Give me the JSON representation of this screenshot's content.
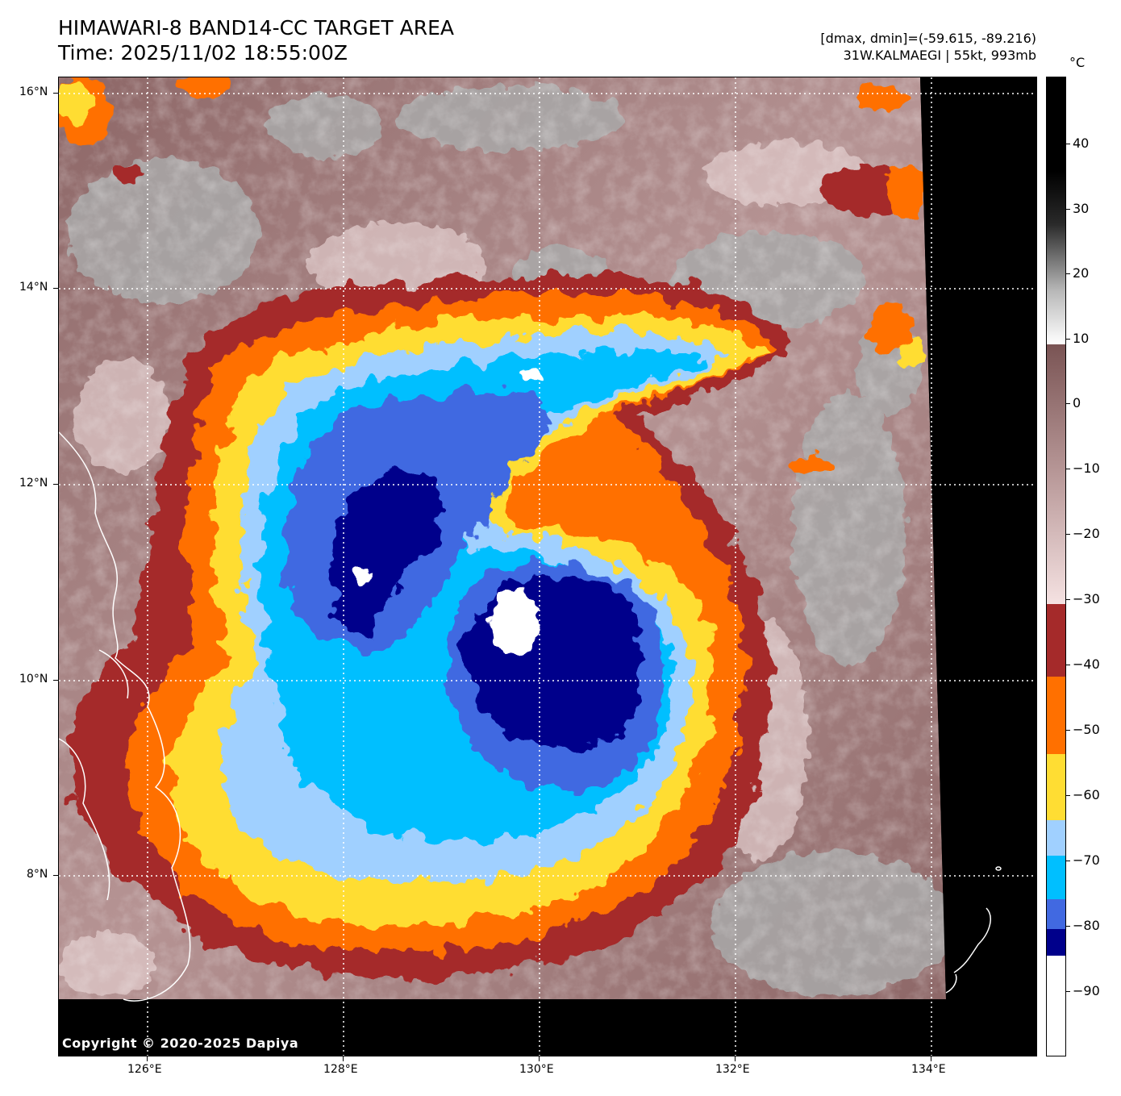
{
  "header": {
    "title_line1": "HIMAWARI-8 BAND14-CC TARGET AREA",
    "title_line2": "Time: 2025/11/02 18:55:00Z",
    "range_text": "[dmax, dmin]=(-59.615, -89.216)",
    "storm_text": "31W.KALMAEGI | 55kt, 993mb"
  },
  "colorbar": {
    "unit": "°C",
    "tick_labels": [
      "40",
      "30",
      "20",
      "10",
      "0",
      "−10",
      "−20",
      "−30",
      "−40",
      "−50",
      "−60",
      "−70",
      "−80",
      "−90"
    ]
  },
  "axes": {
    "lat_labels": [
      "16°N",
      "14°N",
      "12°N",
      "10°N",
      "8°N"
    ],
    "lon_labels": [
      "126°E",
      "128°E",
      "130°E",
      "132°E",
      "134°E"
    ]
  },
  "footer": {
    "copyright": "Copyright © 2020-2025 Dapiya"
  },
  "colors": {
    "dark_red": "#a52a2a",
    "orange": "#ff7000",
    "yellow": "#ffdd33",
    "light_blue": "#a0d0ff",
    "cyan": "#00bfff",
    "royal_blue": "#4169e1",
    "navy": "#00008b",
    "white": "#ffffff",
    "brown": "#8b6262",
    "pink": "#f0d6d6"
  }
}
